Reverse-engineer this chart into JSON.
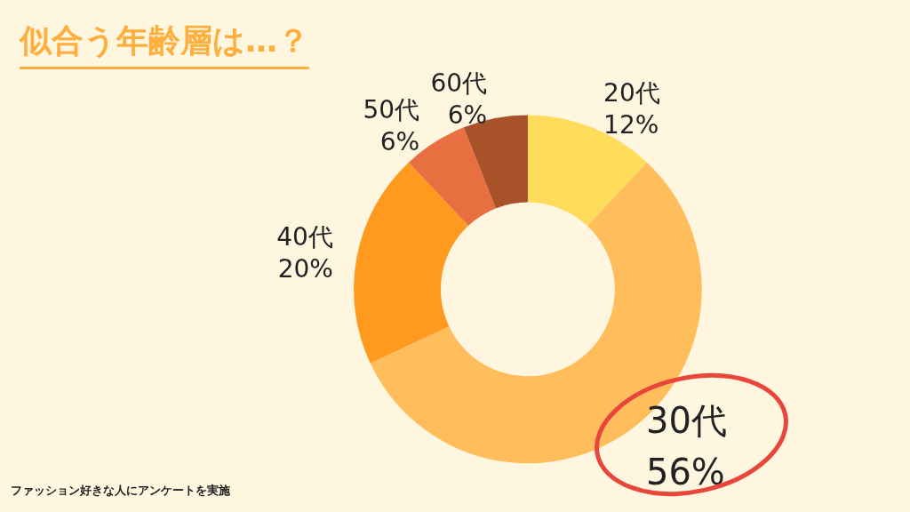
{
  "chart_data": {
    "type": "donut",
    "title": "似合う年齢層は…？",
    "categories": [
      "20代",
      "30代",
      "40代",
      "50代",
      "60代"
    ],
    "values": [
      12,
      56,
      20,
      6,
      6
    ],
    "colors": [
      "#ffdc5a",
      "#ffbd5c",
      "#ff9a1e",
      "#e87040",
      "#a9522a"
    ],
    "value_labels": [
      "12%",
      "56%",
      "20%",
      "6%",
      "6%"
    ],
    "legend": false,
    "annotations": [
      "ファッション好きな人にアンケートを実施"
    ]
  }
}
